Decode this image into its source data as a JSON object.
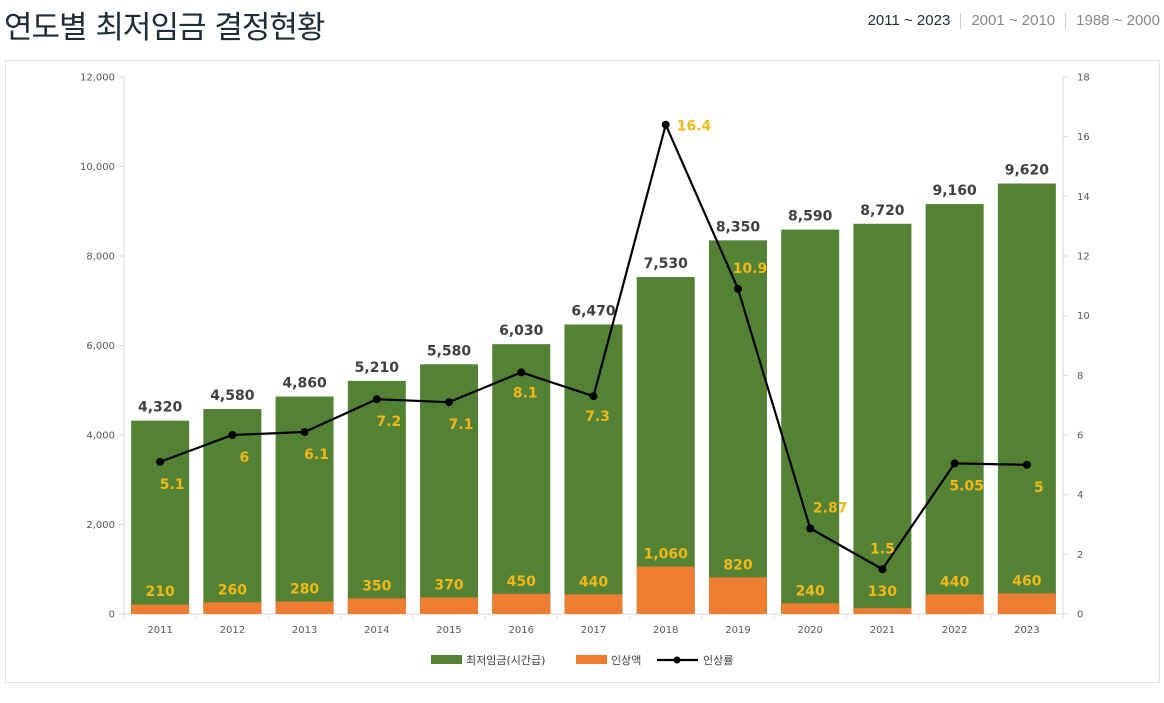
{
  "page": {
    "title": "연도별 최저임금 결정현황",
    "range_tabs": [
      {
        "label": "2011 ~ 2023",
        "active": true
      },
      {
        "label": "2001 ~ 2010",
        "active": false
      },
      {
        "label": "1988 ~ 2000",
        "active": false
      }
    ]
  },
  "chart_data": {
    "type": "bar",
    "categories": [
      "2011",
      "2012",
      "2013",
      "2014",
      "2015",
      "2016",
      "2017",
      "2018",
      "2019",
      "2020",
      "2021",
      "2022",
      "2023"
    ],
    "series": [
      {
        "name": "최저임금(시간급)",
        "kind": "bar",
        "axis": "left",
        "color": "#548235",
        "values": [
          4320,
          4580,
          4860,
          5210,
          5580,
          6030,
          6470,
          7530,
          8350,
          8590,
          8720,
          9160,
          9620
        ],
        "labels": [
          "4,320",
          "4,580",
          "4,860",
          "5,210",
          "5,580",
          "6,030",
          "6,470",
          "7,530",
          "8,350",
          "8,590",
          "8,720",
          "9,160",
          "9,620"
        ]
      },
      {
        "name": "인상액",
        "kind": "bar",
        "axis": "left",
        "color": "#ed7d31",
        "values": [
          210,
          260,
          280,
          350,
          370,
          450,
          440,
          1060,
          820,
          240,
          130,
          440,
          460
        ],
        "labels": [
          "210",
          "260",
          "280",
          "350",
          "370",
          "450",
          "440",
          "1,060",
          "820",
          "240",
          "130",
          "440",
          "460"
        ]
      },
      {
        "name": "인상률",
        "kind": "line",
        "axis": "right",
        "color": "#000000",
        "values": [
          5.1,
          6,
          6.1,
          7.2,
          7.1,
          8.1,
          7.3,
          16.4,
          10.9,
          2.87,
          1.5,
          5.05,
          5
        ],
        "labels": [
          "5.1",
          "6",
          "6.1",
          "7.2",
          "7.1",
          "8.1",
          "7.3",
          "16.4",
          "10.9",
          "2.87",
          "1.5",
          "5.05",
          "5"
        ]
      }
    ],
    "y_left": {
      "ylim": [
        0,
        12000
      ],
      "ticks": [
        "0",
        "2,000",
        "4,000",
        "6,000",
        "8,000",
        "10,000",
        "12,000"
      ]
    },
    "y_right": {
      "ylim": [
        0,
        18
      ],
      "ticks": [
        "0",
        "2",
        "4",
        "6",
        "8",
        "10",
        "12",
        "14",
        "16",
        "18"
      ]
    },
    "legend": "bottom-center",
    "grid": false,
    "label_color": "#f2b918",
    "bar_value_color": "#404040"
  }
}
